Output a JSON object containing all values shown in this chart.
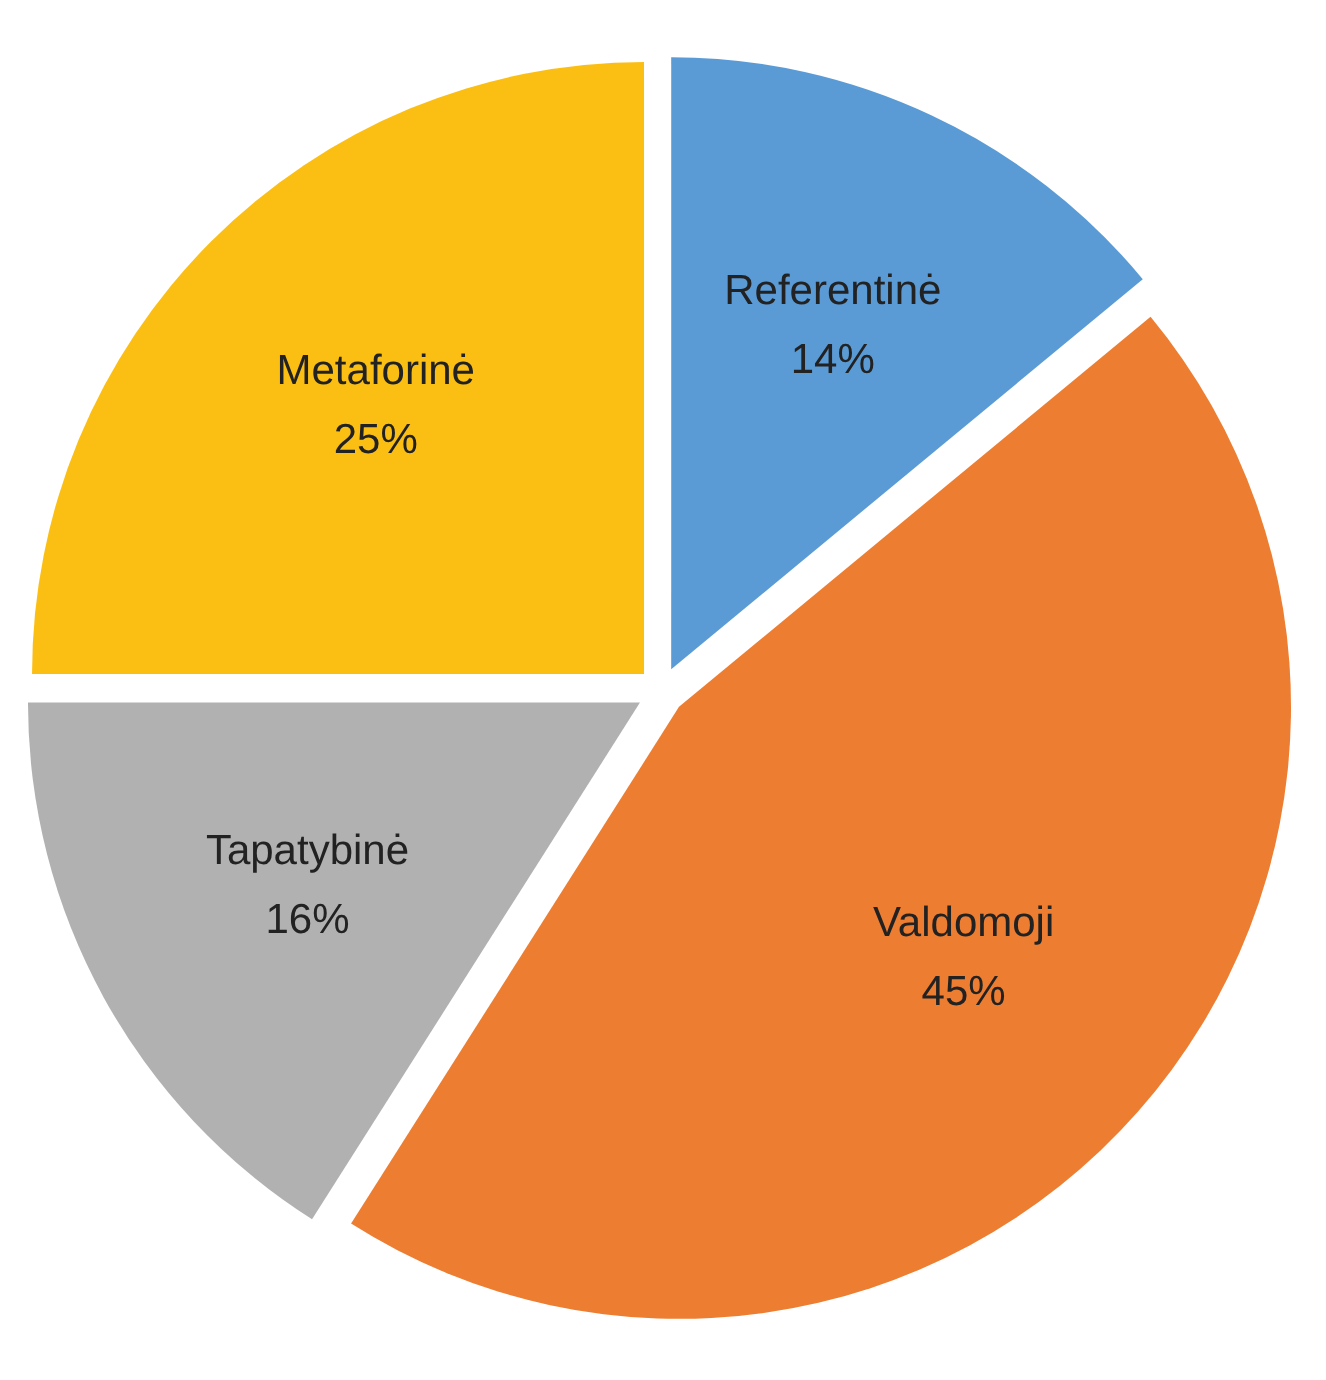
{
  "chart_data": {
    "type": "pie",
    "categories": [
      "Referentinė",
      "Valdomoji",
      "Tapatybinė",
      "Metaforinė"
    ],
    "values": [
      14,
      45,
      16,
      25
    ],
    "value_labels": [
      "14%",
      "45%",
      "16%",
      "25%"
    ],
    "colors": [
      "#5b9bd5",
      "#ed7d31",
      "#b1b1b1",
      "#fbbf14"
    ]
  }
}
